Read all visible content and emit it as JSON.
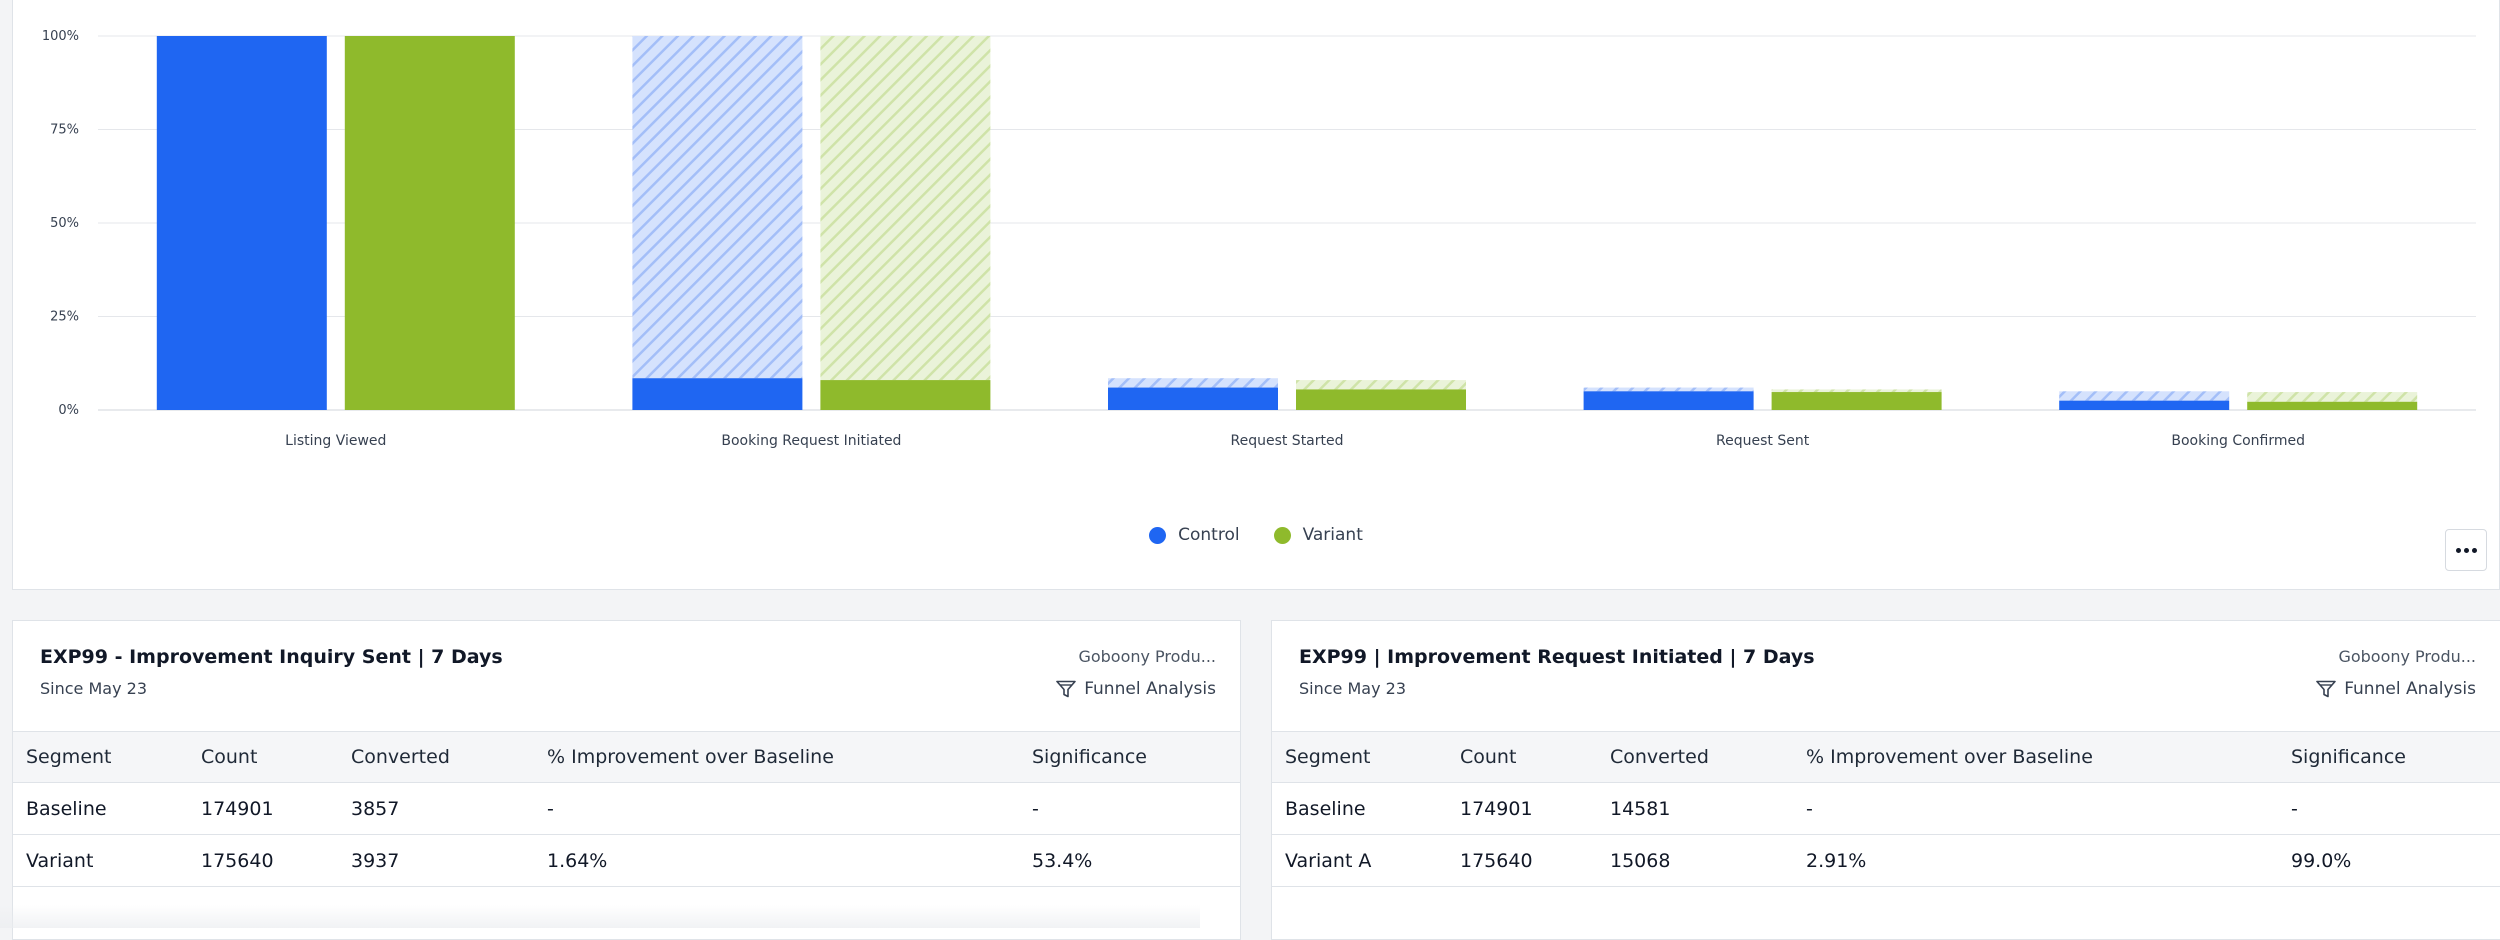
{
  "chart_data": {
    "type": "bar",
    "categories": [
      "Listing Viewed",
      "Booking Request Initiated",
      "Request Started",
      "Request Sent",
      "Booking Confirmed"
    ],
    "y_ticks": [
      "100%",
      "75%",
      "50%",
      "25%",
      "0%"
    ],
    "ylim": [
      0,
      100
    ],
    "series": [
      {
        "name": "Control",
        "color": "#1f66f2",
        "hatch_color": "#bcd0fb",
        "values": [
          100,
          8.5,
          6,
          5,
          2.5
        ],
        "previous_step": [
          null,
          100,
          8.5,
          6,
          5
        ]
      },
      {
        "name": "Variant",
        "color": "#8fba2c",
        "hatch_color": "#dcebc0",
        "values": [
          100,
          8,
          5.5,
          4.8,
          2.2
        ],
        "previous_step": [
          null,
          100,
          8,
          5.5,
          4.8
        ]
      }
    ],
    "legend": [
      "Control",
      "Variant"
    ]
  },
  "cards": [
    {
      "title": "EXP99 - Improvement Inquiry Sent | 7 Days",
      "subtitle": "Since May 23",
      "project": "Goboony Produ...",
      "type_label": "Funnel Analysis",
      "columns": [
        "Segment",
        "Count",
        "Converted",
        "% Improvement over Baseline",
        "Significance"
      ],
      "rows": [
        [
          "Baseline",
          "174901",
          "3857",
          "-",
          "-"
        ],
        [
          "Variant",
          "175640",
          "3937",
          "1.64%",
          "53.4%"
        ]
      ]
    },
    {
      "title": "EXP99 | Improvement Request Initiated | 7 Days",
      "subtitle": "Since May 23",
      "project": "Goboony Produ...",
      "type_label": "Funnel Analysis",
      "columns": [
        "Segment",
        "Count",
        "Converted",
        "% Improvement over Baseline",
        "Significance"
      ],
      "rows": [
        [
          "Baseline",
          "174901",
          "14581",
          "-",
          "-"
        ],
        [
          "Variant A",
          "175640",
          "15068",
          "2.91%",
          "99.0%"
        ]
      ]
    }
  ]
}
